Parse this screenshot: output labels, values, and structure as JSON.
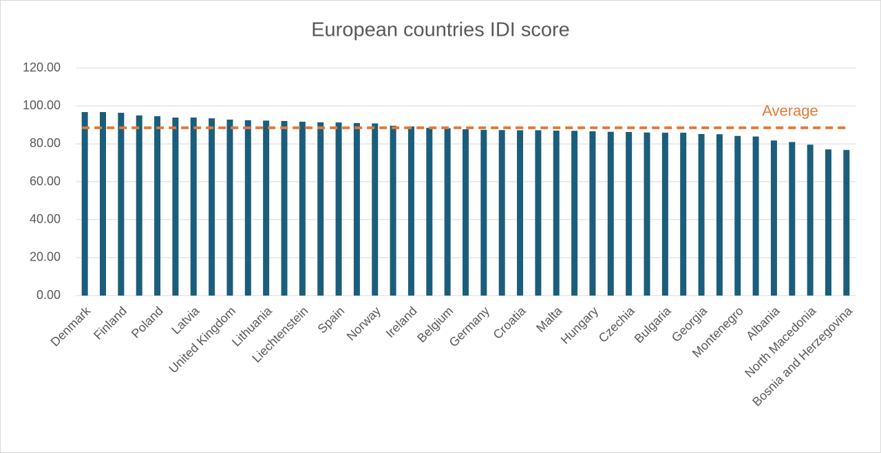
{
  "chart_data": {
    "type": "bar",
    "title": "European countries IDI score",
    "categories": [
      "Denmark",
      null,
      "Finland",
      null,
      "Poland",
      null,
      "Latvia",
      null,
      "United Kingdom",
      null,
      "Lithuania",
      null,
      "Liechtenstein",
      null,
      "Spain",
      null,
      "Norway",
      null,
      "Ireland",
      null,
      "Belgium",
      null,
      "Germany",
      null,
      "Croatia",
      null,
      "Malta",
      null,
      "Hungary",
      null,
      "Czechia",
      null,
      "Bulgaria",
      null,
      "Georgia",
      null,
      "Montenegro",
      null,
      "Albania",
      null,
      "North Macedonia",
      null,
      "Bosnia and Herzegovina"
    ],
    "values": [
      96.8,
      96.8,
      96.4,
      95.0,
      94.6,
      93.9,
      93.9,
      93.5,
      92.8,
      92.5,
      92.3,
      92.1,
      91.7,
      91.4,
      91.3,
      91.0,
      90.8,
      89.6,
      89.2,
      88.5,
      88.3,
      87.7,
      87.4,
      87.3,
      87.2,
      87.2,
      87.0,
      86.9,
      86.7,
      86.4,
      86.3,
      86.0,
      85.9,
      85.9,
      85.2,
      85.1,
      84.2,
      83.9,
      81.8,
      81.0,
      79.6,
      77.1,
      76.8
    ],
    "color": "#1b5e7b",
    "average": {
      "label": "Average",
      "value": 88.5,
      "color": "#e07b39"
    },
    "ylim": [
      0,
      120
    ],
    "yticks": [
      {
        "value": 0,
        "label": "0.00"
      },
      {
        "value": 20,
        "label": "20.00"
      },
      {
        "value": 40,
        "label": "40.00"
      },
      {
        "value": 60,
        "label": "60.00"
      },
      {
        "value": 80,
        "label": "80.00"
      },
      {
        "value": 100,
        "label": "100.00"
      },
      {
        "value": 120,
        "label": "120.00"
      }
    ],
    "grid": true
  }
}
